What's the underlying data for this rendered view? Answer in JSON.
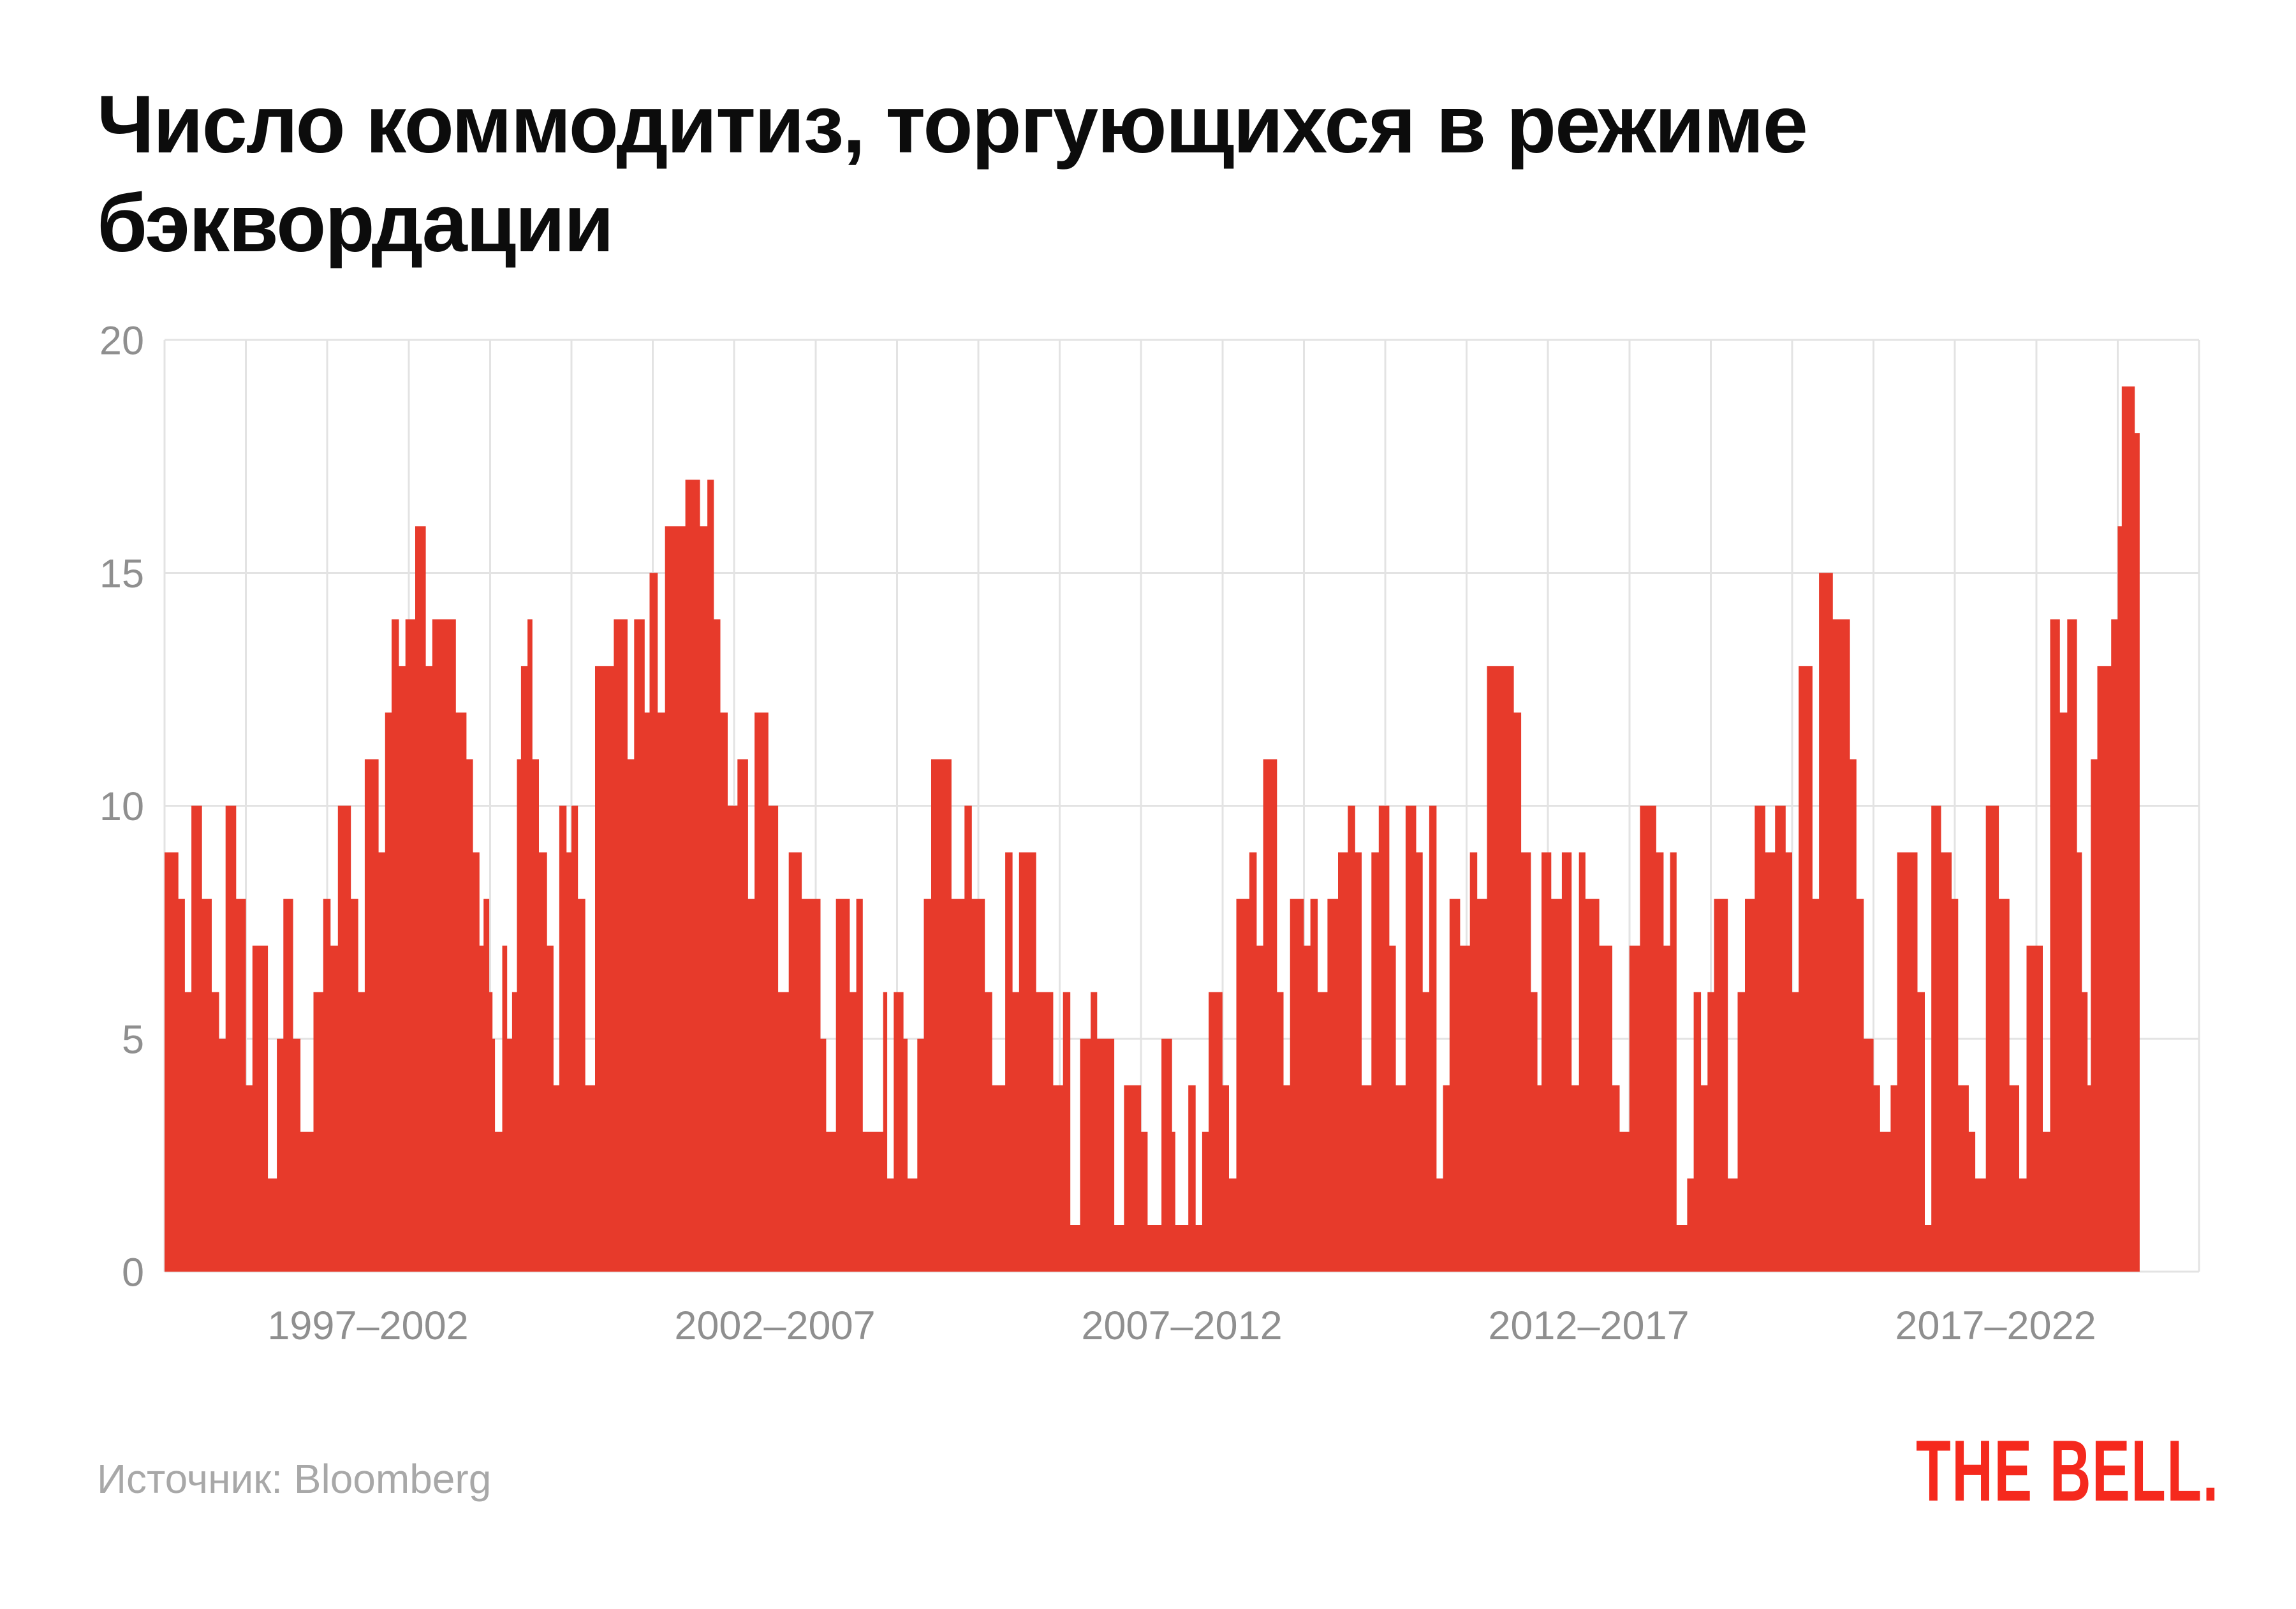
{
  "header": {
    "title_line1": "Число коммодитиз, торгующихся в режиме",
    "title_line2": "бэквордации"
  },
  "footer": {
    "source_label": "Источник: Bloomberg",
    "logo_text": "THE BELL."
  },
  "colors": {
    "background": "#ffffff",
    "series_red": "#e73a2b",
    "logo_red": "#f5291d",
    "grid": "#e3e3e3",
    "axis_text": "#8f8f8f",
    "title_text": "#0c0c0c",
    "source_text": "#a8a8a8"
  },
  "chart_data": {
    "type": "area",
    "title": "Число коммодитиз, торгующихся в режиме бэквордации",
    "xlabel": "",
    "ylabel": "",
    "x_domain": [
      1997,
      2022
    ],
    "ylim": [
      0,
      20
    ],
    "y_ticks": [
      0,
      5,
      10,
      15,
      20
    ],
    "x_tick_labels": [
      {
        "label": "1997–2002",
        "center_year": 1999.5
      },
      {
        "label": "2002–2007",
        "center_year": 2004.5
      },
      {
        "label": "2007–2012",
        "center_year": 2009.5
      },
      {
        "label": "2012–2017",
        "center_year": 2014.5
      },
      {
        "label": "2017–2022",
        "center_year": 2019.5
      }
    ],
    "grid": "on",
    "legend": "none",
    "series": [
      {
        "name": "commodities-in-backwardation-count",
        "t_end": 2021.27,
        "step_points": [
          [
            1997.0,
            9
          ],
          [
            1997.17,
            8
          ],
          [
            1997.25,
            6
          ],
          [
            1997.33,
            10
          ],
          [
            1997.46,
            8
          ],
          [
            1997.58,
            6
          ],
          [
            1997.67,
            5
          ],
          [
            1997.75,
            10
          ],
          [
            1997.88,
            8
          ],
          [
            1998.0,
            4
          ],
          [
            1998.08,
            7
          ],
          [
            1998.27,
            2
          ],
          [
            1998.38,
            5
          ],
          [
            1998.46,
            8
          ],
          [
            1998.58,
            5
          ],
          [
            1998.67,
            3
          ],
          [
            1998.83,
            6
          ],
          [
            1998.95,
            8
          ],
          [
            1999.04,
            7
          ],
          [
            1999.13,
            10
          ],
          [
            1999.29,
            8
          ],
          [
            1999.38,
            6
          ],
          [
            1999.46,
            11
          ],
          [
            1999.63,
            9
          ],
          [
            1999.71,
            12
          ],
          [
            1999.79,
            14
          ],
          [
            1999.88,
            13
          ],
          [
            1999.96,
            14
          ],
          [
            2000.08,
            16
          ],
          [
            2000.21,
            13
          ],
          [
            2000.29,
            14
          ],
          [
            2000.46,
            14
          ],
          [
            2000.58,
            12
          ],
          [
            2000.71,
            11
          ],
          [
            2000.79,
            9
          ],
          [
            2000.87,
            7
          ],
          [
            2000.92,
            8
          ],
          [
            2000.99,
            6
          ],
          [
            2001.03,
            5
          ],
          [
            2001.06,
            3
          ],
          [
            2001.15,
            7
          ],
          [
            2001.21,
            5
          ],
          [
            2001.27,
            6
          ],
          [
            2001.33,
            11
          ],
          [
            2001.38,
            13
          ],
          [
            2001.46,
            14
          ],
          [
            2001.52,
            11
          ],
          [
            2001.6,
            9
          ],
          [
            2001.7,
            7
          ],
          [
            2001.78,
            4
          ],
          [
            2001.85,
            10
          ],
          [
            2001.94,
            9
          ],
          [
            2002.0,
            10
          ],
          [
            2002.08,
            8
          ],
          [
            2002.17,
            4
          ],
          [
            2002.29,
            13
          ],
          [
            2002.52,
            14
          ],
          [
            2002.69,
            11
          ],
          [
            2002.77,
            14
          ],
          [
            2002.9,
            12
          ],
          [
            2002.96,
            15
          ],
          [
            2003.06,
            12
          ],
          [
            2003.15,
            16
          ],
          [
            2003.4,
            17
          ],
          [
            2003.58,
            16
          ],
          [
            2003.67,
            17
          ],
          [
            2003.75,
            14
          ],
          [
            2003.83,
            12
          ],
          [
            2003.92,
            10
          ],
          [
            2004.04,
            11
          ],
          [
            2004.17,
            8
          ],
          [
            2004.25,
            12
          ],
          [
            2004.42,
            10
          ],
          [
            2004.54,
            6
          ],
          [
            2004.67,
            9
          ],
          [
            2004.83,
            8
          ],
          [
            2005.0,
            8
          ],
          [
            2005.06,
            5
          ],
          [
            2005.13,
            3
          ],
          [
            2005.25,
            8
          ],
          [
            2005.42,
            6
          ],
          [
            2005.5,
            8
          ],
          [
            2005.58,
            3
          ],
          [
            2005.75,
            3
          ],
          [
            2005.83,
            6
          ],
          [
            2005.88,
            2
          ],
          [
            2005.96,
            6
          ],
          [
            2006.08,
            5
          ],
          [
            2006.13,
            2
          ],
          [
            2006.25,
            5
          ],
          [
            2006.33,
            8
          ],
          [
            2006.42,
            11
          ],
          [
            2006.58,
            11
          ],
          [
            2006.67,
            8
          ],
          [
            2006.83,
            10
          ],
          [
            2006.92,
            8
          ],
          [
            2007.0,
            8
          ],
          [
            2007.08,
            6
          ],
          [
            2007.17,
            4
          ],
          [
            2007.33,
            9
          ],
          [
            2007.42,
            6
          ],
          [
            2007.5,
            9
          ],
          [
            2007.71,
            6
          ],
          [
            2007.92,
            4
          ],
          [
            2008.04,
            6
          ],
          [
            2008.13,
            1
          ],
          [
            2008.25,
            5
          ],
          [
            2008.38,
            6
          ],
          [
            2008.46,
            5
          ],
          [
            2008.67,
            1
          ],
          [
            2008.79,
            4
          ],
          [
            2009.0,
            3
          ],
          [
            2009.08,
            1
          ],
          [
            2009.25,
            5
          ],
          [
            2009.38,
            3
          ],
          [
            2009.42,
            1
          ],
          [
            2009.58,
            4
          ],
          [
            2009.67,
            1
          ],
          [
            2009.75,
            3
          ],
          [
            2009.83,
            6
          ],
          [
            2010.0,
            4
          ],
          [
            2010.08,
            2
          ],
          [
            2010.17,
            8
          ],
          [
            2010.33,
            9
          ],
          [
            2010.42,
            7
          ],
          [
            2010.5,
            11
          ],
          [
            2010.67,
            6
          ],
          [
            2010.75,
            4
          ],
          [
            2010.83,
            8
          ],
          [
            2011.0,
            7
          ],
          [
            2011.08,
            8
          ],
          [
            2011.17,
            6
          ],
          [
            2011.29,
            8
          ],
          [
            2011.42,
            9
          ],
          [
            2011.54,
            10
          ],
          [
            2011.63,
            9
          ],
          [
            2011.71,
            4
          ],
          [
            2011.83,
            9
          ],
          [
            2011.92,
            10
          ],
          [
            2012.0,
            10
          ],
          [
            2012.05,
            7
          ],
          [
            2012.13,
            4
          ],
          [
            2012.25,
            10
          ],
          [
            2012.38,
            9
          ],
          [
            2012.46,
            6
          ],
          [
            2012.54,
            10
          ],
          [
            2012.63,
            2
          ],
          [
            2012.71,
            4
          ],
          [
            2012.79,
            8
          ],
          [
            2012.92,
            7
          ],
          [
            2013.04,
            9
          ],
          [
            2013.13,
            8
          ],
          [
            2013.25,
            13
          ],
          [
            2013.5,
            13
          ],
          [
            2013.58,
            12
          ],
          [
            2013.67,
            9
          ],
          [
            2013.79,
            6
          ],
          [
            2013.87,
            4
          ],
          [
            2013.92,
            9
          ],
          [
            2014.04,
            8
          ],
          [
            2014.17,
            9
          ],
          [
            2014.29,
            4
          ],
          [
            2014.38,
            9
          ],
          [
            2014.46,
            8
          ],
          [
            2014.63,
            7
          ],
          [
            2014.79,
            4
          ],
          [
            2014.88,
            3
          ],
          [
            2015.0,
            7
          ],
          [
            2015.13,
            10
          ],
          [
            2015.33,
            9
          ],
          [
            2015.42,
            7
          ],
          [
            2015.5,
            9
          ],
          [
            2015.58,
            1
          ],
          [
            2015.71,
            2
          ],
          [
            2015.79,
            6
          ],
          [
            2015.88,
            4
          ],
          [
            2015.96,
            6
          ],
          [
            2016.04,
            8
          ],
          [
            2016.21,
            2
          ],
          [
            2016.33,
            6
          ],
          [
            2016.42,
            8
          ],
          [
            2016.54,
            10
          ],
          [
            2016.67,
            9
          ],
          [
            2016.79,
            10
          ],
          [
            2016.92,
            9
          ],
          [
            2017.0,
            6
          ],
          [
            2017.08,
            13
          ],
          [
            2017.25,
            8
          ],
          [
            2017.33,
            15
          ],
          [
            2017.5,
            14
          ],
          [
            2017.58,
            14
          ],
          [
            2017.71,
            11
          ],
          [
            2017.79,
            8
          ],
          [
            2017.88,
            5
          ],
          [
            2018.0,
            4
          ],
          [
            2018.08,
            3
          ],
          [
            2018.21,
            4
          ],
          [
            2018.29,
            9
          ],
          [
            2018.54,
            6
          ],
          [
            2018.63,
            1
          ],
          [
            2018.71,
            10
          ],
          [
            2018.83,
            9
          ],
          [
            2018.96,
            8
          ],
          [
            2019.04,
            4
          ],
          [
            2019.17,
            3
          ],
          [
            2019.25,
            2
          ],
          [
            2019.38,
            10
          ],
          [
            2019.54,
            8
          ],
          [
            2019.67,
            4
          ],
          [
            2019.79,
            2
          ],
          [
            2019.88,
            7
          ],
          [
            2020.0,
            7
          ],
          [
            2020.08,
            3
          ],
          [
            2020.17,
            14
          ],
          [
            2020.29,
            12
          ],
          [
            2020.38,
            14
          ],
          [
            2020.5,
            9
          ],
          [
            2020.56,
            6
          ],
          [
            2020.63,
            4
          ],
          [
            2020.67,
            11
          ],
          [
            2020.75,
            13
          ],
          [
            2020.92,
            14
          ],
          [
            2021.0,
            16
          ],
          [
            2021.05,
            19
          ],
          [
            2021.21,
            18
          ]
        ]
      }
    ]
  }
}
